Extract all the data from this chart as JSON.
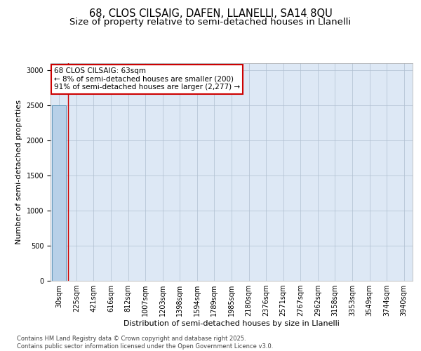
{
  "title_line1": "68, CLOS CILSAIG, DAFEN, LLANELLI, SA14 8QU",
  "title_line2": "Size of property relative to semi-detached houses in Llanelli",
  "xlabel": "Distribution of semi-detached houses by size in Llanelli",
  "ylabel": "Number of semi-detached properties",
  "categories": [
    "30sqm",
    "225sqm",
    "421sqm",
    "616sqm",
    "812sqm",
    "1007sqm",
    "1203sqm",
    "1398sqm",
    "1594sqm",
    "1789sqm",
    "1985sqm",
    "2180sqm",
    "2376sqm",
    "2571sqm",
    "2767sqm",
    "2962sqm",
    "3158sqm",
    "3353sqm",
    "3549sqm",
    "3744sqm",
    "3940sqm"
  ],
  "values": [
    2500,
    4,
    2,
    1,
    1,
    1,
    1,
    1,
    1,
    1,
    1,
    1,
    1,
    1,
    1,
    1,
    1,
    1,
    1,
    1,
    1
  ],
  "ylim": [
    0,
    3100
  ],
  "yticks": [
    0,
    500,
    1000,
    1500,
    2000,
    2500,
    3000
  ],
  "bar_color": "#b8d0e8",
  "bar_edge_color": "#6699bb",
  "annotation_text": "68 CLOS CILSAIG: 63sqm\n← 8% of semi-detached houses are smaller (200)\n91% of semi-detached houses are larger (2,277) →",
  "annotation_box_facecolor": "#ffffff",
  "annotation_box_edgecolor": "#cc0000",
  "property_line_x": 0.5,
  "footer_text": "Contains HM Land Registry data © Crown copyright and database right 2025.\nContains public sector information licensed under the Open Government Licence v3.0.",
  "bg_color": "#ffffff",
  "chart_bg_color": "#dde8f5",
  "grid_color": "#b0bfd0",
  "title_fontsize": 10.5,
  "subtitle_fontsize": 9.5,
  "axis_label_fontsize": 8,
  "tick_fontsize": 7,
  "annotation_fontsize": 7.5,
  "footer_fontsize": 6
}
